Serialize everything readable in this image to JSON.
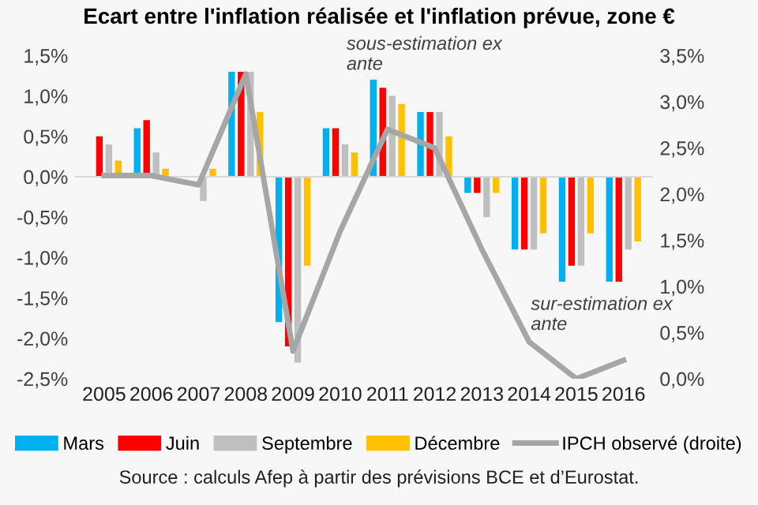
{
  "chart_data": {
    "type": "bar",
    "title": "Ecart entre l'inflation réalisée et l'inflation prévue, zone €",
    "categories": [
      "2005",
      "2006",
      "2007",
      "2008",
      "2009",
      "2010",
      "2011",
      "2012",
      "2013",
      "2014",
      "2015",
      "2016"
    ],
    "series": [
      {
        "name": "Mars",
        "color": "#00b0f0",
        "values": [
          0,
          0.6,
          0,
          1.3,
          -1.8,
          0.6,
          1.2,
          0.8,
          -0.2,
          -0.9,
          -1.3,
          -1.3
        ]
      },
      {
        "name": "Juin",
        "color": "#ff0000",
        "values": [
          0.5,
          0.7,
          0,
          1.3,
          -2.1,
          0.6,
          1.1,
          0.8,
          -0.2,
          -0.9,
          -1.1,
          -1.3
        ]
      },
      {
        "name": "Septembre",
        "color": "#bfbfbf",
        "values": [
          0.4,
          0.3,
          -0.3,
          1.3,
          -2.3,
          0.4,
          1.0,
          0.8,
          -0.5,
          -0.9,
          -1.1,
          -0.9
        ]
      },
      {
        "name": "Décembre",
        "color": "#ffc000",
        "values": [
          0.2,
          0.1,
          0.1,
          0.8,
          -1.1,
          0.3,
          0.9,
          0.5,
          -0.2,
          -0.7,
          -0.7,
          -0.8
        ]
      },
      {
        "name": "IPCH observé (droite)",
        "type": "line",
        "axis": "y2",
        "color": "#a6a6a6",
        "values": [
          2.2,
          2.2,
          2.1,
          3.3,
          0.3,
          1.6,
          2.7,
          2.5,
          1.4,
          0.4,
          0.0,
          0.2
        ]
      }
    ],
    "ylim": [
      -2.5,
      1.5
    ],
    "yticks": [
      {
        "value": 1.5,
        "label": "1,5%"
      },
      {
        "value": 1.0,
        "label": "1,0%"
      },
      {
        "value": 0.5,
        "label": "0,5%"
      },
      {
        "value": 0,
        "label": "0,0%"
      },
      {
        "value": -0.5,
        "label": "-0,5%"
      },
      {
        "value": -1.0,
        "label": "-1,0%"
      },
      {
        "value": -1.5,
        "label": "-1,5%"
      },
      {
        "value": -2.0,
        "label": "-2,0%"
      },
      {
        "value": -2.5,
        "label": "-2,5%"
      }
    ],
    "y2lim": [
      0,
      3.5
    ],
    "y2ticks": [
      {
        "value": 0,
        "label": "0,0%"
      },
      {
        "value": 0.5,
        "label": "0,5%"
      },
      {
        "value": 1.0,
        "label": "1,0%"
      },
      {
        "value": 1.5,
        "label": "1,5%"
      },
      {
        "value": 2.0,
        "label": "2,0%"
      },
      {
        "value": 2.5,
        "label": "2,5%"
      },
      {
        "value": 3.0,
        "label": "3,0%"
      },
      {
        "value": 3.5,
        "label": "3,5%"
      }
    ],
    "annotations": [
      "sous-estimation ex\nante",
      "sur-estimation ex\nante",
      "Source : calculs Afep à partir des prévisions BCE et d’Eurostat."
    ],
    "legend": "bottom"
  }
}
